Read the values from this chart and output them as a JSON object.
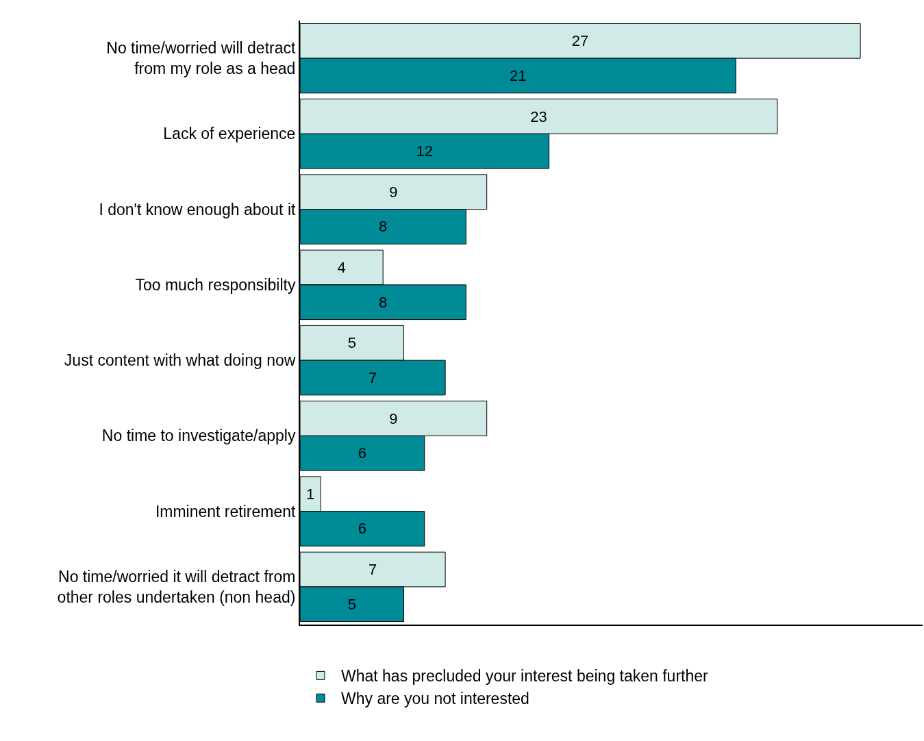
{
  "chart_data": {
    "type": "bar",
    "orientation": "horizontal",
    "categories": [
      "No time/worried will detract from my role as a head",
      "Lack of experience",
      "I don't know enough about it",
      "Too much responsibilty",
      "Just content with what doing now",
      "No time to investigate/apply",
      "Imminent retirement",
      "No time/worried it will detract from other roles undertaken (non head)"
    ],
    "series": [
      {
        "name": "What has precluded your interest being taken further",
        "color": "#d0eae8",
        "values": [
          27,
          23,
          9,
          4,
          5,
          9,
          1,
          7
        ]
      },
      {
        "name": "Why are you not interested",
        "color": "#008b96",
        "values": [
          21,
          12,
          8,
          8,
          7,
          6,
          6,
          5
        ]
      }
    ],
    "xlim": [
      0,
      30
    ],
    "tick_labels": "y",
    "data_labels": true,
    "legend": "bottom"
  }
}
